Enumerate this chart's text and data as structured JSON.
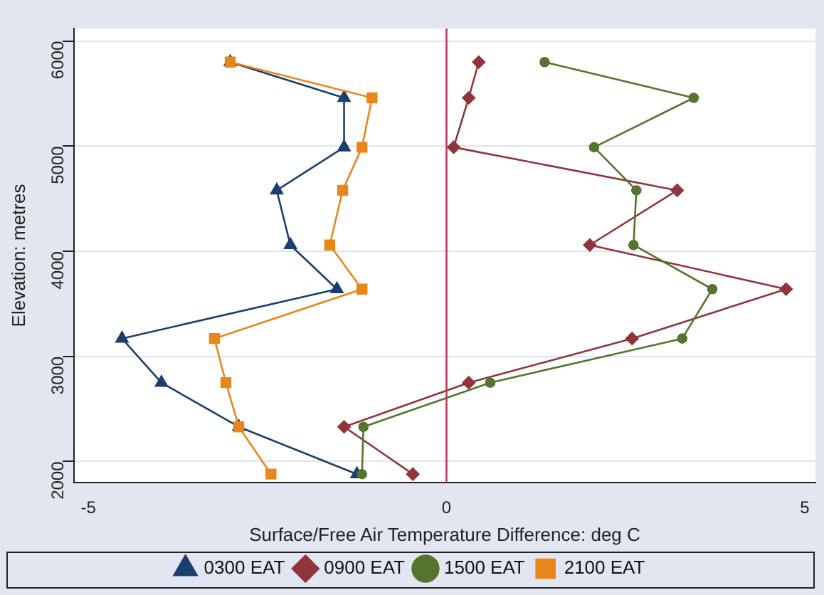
{
  "chart_data": {
    "type": "line",
    "xlabel": "Surface/Free Air Temperature Difference: deg C",
    "ylabel": "Elevation: metres",
    "xlim": [
      -5.2,
      5.15
    ],
    "xticks": [
      -5,
      0,
      5
    ],
    "ylim": [
      1800,
      6120
    ],
    "yticks": [
      2000,
      3000,
      4000,
      5000,
      6000
    ],
    "grid": "y",
    "legend": "bottom",
    "ref_lines": [
      {
        "axis": "x",
        "value": 0,
        "color": "#c03a5c"
      }
    ],
    "series": [
      {
        "name": "0300 EAT",
        "color": "#1a3f6f",
        "marker": "triangle",
        "x": [
          -3.02,
          -1.43,
          -1.43,
          -2.37,
          -2.18,
          -1.53,
          -4.53,
          -3.98,
          -2.9,
          -1.25
        ],
        "values": [
          5800,
          5460,
          4990,
          4580,
          4060,
          3640,
          3170,
          2750,
          2330,
          1880
        ]
      },
      {
        "name": "0900 EAT",
        "color": "#90353b",
        "marker": "diamond",
        "x": [
          0.45,
          0.31,
          0.1,
          3.22,
          2.0,
          4.74,
          2.59,
          0.31,
          -1.43,
          -0.47
        ],
        "values": [
          5800,
          5460,
          4990,
          4580,
          4060,
          3640,
          3170,
          2750,
          2330,
          1880
        ]
      },
      {
        "name": "1500 EAT",
        "color": "#55752f",
        "marker": "circle",
        "x": [
          1.37,
          3.45,
          2.06,
          2.65,
          2.61,
          3.71,
          3.29,
          0.61,
          -1.16,
          -1.18
        ],
        "values": [
          5800,
          5460,
          4990,
          4580,
          4060,
          3640,
          3170,
          2750,
          2330,
          1880
        ]
      },
      {
        "name": "2100 EAT",
        "color": "#e8861a",
        "marker": "square",
        "x": [
          -3.02,
          -1.04,
          -1.18,
          -1.45,
          -1.63,
          -1.18,
          -3.24,
          -3.08,
          -2.9,
          -2.45
        ],
        "values": [
          5800,
          5460,
          4990,
          4580,
          4060,
          3640,
          3170,
          2750,
          2330,
          1880
        ]
      }
    ]
  }
}
